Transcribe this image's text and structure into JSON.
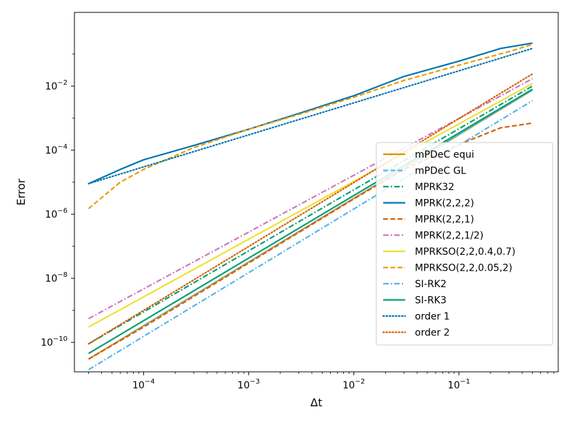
{
  "chart_data": {
    "type": "line",
    "title": "",
    "xlabel": "Δt",
    "ylabel": "Error",
    "xscale": "log",
    "yscale": "log",
    "xlim": [
      2.2e-05,
      0.88
    ],
    "ylim": [
      1.2e-11,
      2.0
    ],
    "xticks": [
      {
        "value": 0.0001,
        "base": "10",
        "exp": "−4"
      },
      {
        "value": 0.001,
        "base": "10",
        "exp": "−3"
      },
      {
        "value": 0.01,
        "base": "10",
        "exp": "−2"
      },
      {
        "value": 0.1,
        "base": "10",
        "exp": "−1"
      }
    ],
    "yticks": [
      {
        "value": 1e-10,
        "base": "10",
        "exp": "−10"
      },
      {
        "value": 1e-08,
        "base": "10",
        "exp": "−8"
      },
      {
        "value": 1e-06,
        "base": "10",
        "exp": "−6"
      },
      {
        "value": 0.0001,
        "base": "10",
        "exp": "−4"
      },
      {
        "value": 0.01,
        "base": "10",
        "exp": "−2"
      }
    ],
    "legend_position": "lower-right",
    "series": [
      {
        "name": "mPDeC equi",
        "color": "#DE8F05",
        "dash": "solid",
        "x": [
          3e-05,
          0.5
        ],
        "y": [
          3e-11,
          0.0075
        ]
      },
      {
        "name": "mPDeC GL",
        "color": "#56B4E9",
        "dash": "dashed",
        "x": [
          3e-05,
          0.5
        ],
        "y": [
          3e-11,
          0.0075
        ]
      },
      {
        "name": "MPRK32",
        "color": "#029E73",
        "dash": "dashdot",
        "x": [
          3e-05,
          0.5
        ],
        "y": [
          9e-11,
          0.01
        ]
      },
      {
        "name": "MPRK(2,2,2)",
        "color": "#0173B2",
        "dash": "solid",
        "x": [
          3e-05,
          6e-05,
          0.0001,
          0.0003,
          0.001,
          0.003,
          0.01,
          0.03,
          0.1,
          0.25,
          0.5
        ],
        "y": [
          9e-06,
          2.5e-05,
          5e-05,
          0.00014,
          0.00045,
          0.0014,
          0.005,
          0.02,
          0.06,
          0.15,
          0.22
        ]
      },
      {
        "name": "MPRK(2,2,1)",
        "color": "#D55E00",
        "dash": "dashed",
        "x": [
          3e-05,
          0.0001,
          0.001,
          0.01,
          0.03,
          0.1,
          0.25,
          0.5
        ],
        "y": [
          3e-11,
          3e-10,
          3e-08,
          3e-06,
          2.5e-05,
          0.00015,
          0.0005,
          0.0007
        ]
      },
      {
        "name": "MPRK(2,2,1/2)",
        "color": "#CC78BC",
        "dash": "dashdot",
        "x": [
          3e-05,
          0.5
        ],
        "y": [
          5.5e-10,
          0.017
        ]
      },
      {
        "name": "MPRKSO(2,2,0.4,0.7)",
        "color": "#ECE133",
        "dash": "solid",
        "x": [
          3e-05,
          0.5
        ],
        "y": [
          3e-10,
          0.012
        ]
      },
      {
        "name": "MPRKSO(2,2,0.05,2)",
        "color": "#E69F00",
        "dash": "dashed",
        "x": [
          3e-05,
          6e-05,
          0.0001,
          0.0003,
          0.001,
          0.003,
          0.01,
          0.03,
          0.1,
          0.3,
          0.5
        ],
        "y": [
          1.5e-06,
          1e-05,
          2.5e-05,
          0.00012,
          0.00045,
          0.0013,
          0.0045,
          0.015,
          0.045,
          0.12,
          0.2
        ]
      },
      {
        "name": "SI-RK2",
        "color": "#56B4E9",
        "dash": "dashdot",
        "x": [
          3e-05,
          0.5
        ],
        "y": [
          1.4e-11,
          0.0035
        ]
      },
      {
        "name": "SI-RK3",
        "color": "#029E73",
        "dash": "solid",
        "x": [
          3e-05,
          0.5
        ],
        "y": [
          4.5e-11,
          0.008
        ]
      },
      {
        "name": "order 1",
        "color": "#0173B2",
        "dash": "dotted",
        "x": [
          3e-05,
          0.5
        ],
        "y": [
          9e-06,
          0.15
        ]
      },
      {
        "name": "order 2",
        "color": "#D55E00",
        "dash": "dotted",
        "x": [
          3e-05,
          0.5
        ],
        "y": [
          9e-11,
          0.024
        ]
      }
    ]
  }
}
